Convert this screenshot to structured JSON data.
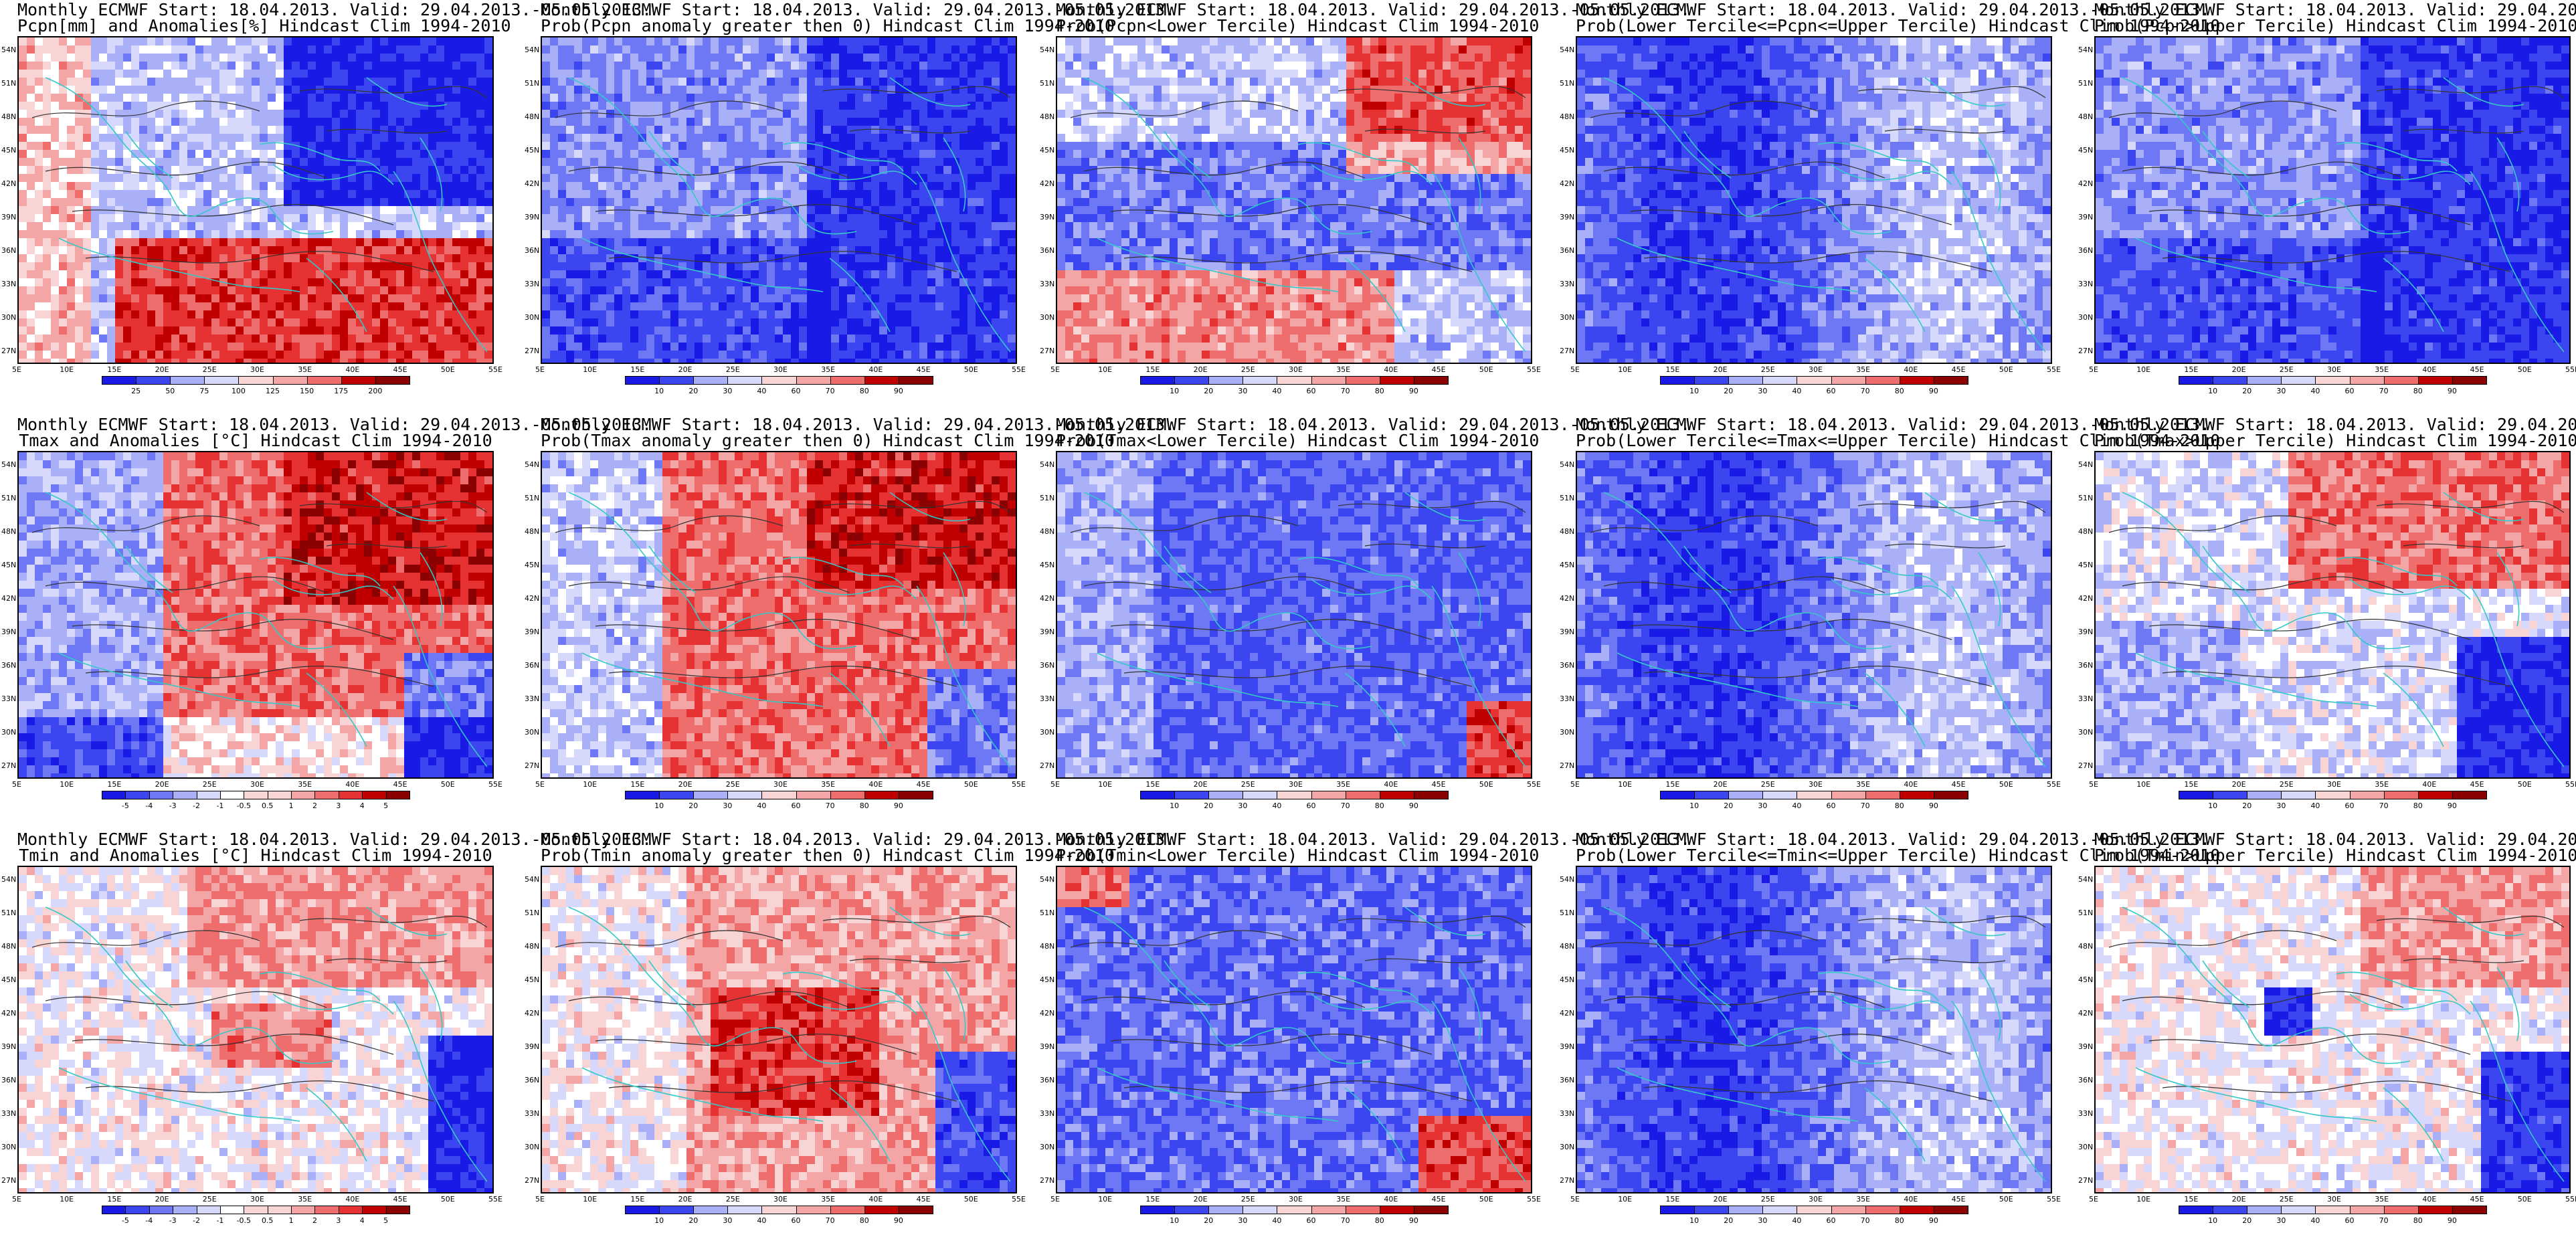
{
  "figure": {
    "common_title": "Monthly ECMWF Start: 18.04.2013. Valid: 29.04.2013.-05.05.2013.",
    "lat_labels": [
      "54N",
      "51N",
      "48N",
      "45N",
      "42N",
      "39N",
      "36N",
      "33N",
      "30N",
      "27N"
    ],
    "lon_labels": [
      "5E",
      "10E",
      "15E",
      "20E",
      "25E",
      "30E",
      "35E",
      "40E",
      "45E",
      "50E",
      "55E"
    ],
    "colors": {
      "deep_blue": "#1a1ae6",
      "blue": "#3c46f0",
      "mid_blue": "#6e78f5",
      "light_blue": "#aab0f8",
      "pale_blue": "#d6d9fb",
      "white": "#ffffff",
      "pale_red": "#f9d4d4",
      "light_red": "#f4a6a6",
      "mid_red": "#ee6e6e",
      "red": "#e63232",
      "deep_red": "#c00000",
      "dark_red": "#8b0000",
      "coast": "#35c8c8",
      "contour": "#333333"
    },
    "rows": [
      {
        "variable": "precipitation",
        "panels": [
          {
            "line2": "Pcpn[mm] and Anomalies[%] Hindcast Clim 1994-2010",
            "scheme": "anomaly",
            "colorbar": [
              "25",
              "50",
              "75",
              "100",
              "125",
              "150",
              "175",
              "200"
            ]
          },
          {
            "line2": "Prob(Pcpn anomaly greater then 0) Hindcast Clim 1994-2010",
            "scheme": "prob",
            "colorbar": [
              "10",
              "20",
              "30",
              "40",
              "60",
              "70",
              "80",
              "90"
            ]
          },
          {
            "line2": "Prob(Pcpn<Lower Tercile) Hindcast Clim 1994-2010",
            "scheme": "prob",
            "colorbar": [
              "10",
              "20",
              "30",
              "40",
              "60",
              "70",
              "80",
              "90"
            ]
          },
          {
            "line2": "Prob(Lower Tercile<=Pcpn<=Upper Tercile) Hindcast Clim 1994-2010",
            "scheme": "prob",
            "colorbar": [
              "10",
              "20",
              "30",
              "40",
              "60",
              "70",
              "80",
              "90"
            ]
          },
          {
            "line2": "Prob(Pcpn>Upper Tercile) Hindcast Clim 1994-2010",
            "scheme": "prob",
            "colorbar": [
              "10",
              "20",
              "30",
              "40",
              "60",
              "70",
              "80",
              "90"
            ]
          }
        ]
      },
      {
        "variable": "tmax",
        "panels": [
          {
            "line2": "Tmax and Anomalies [°C] Hindcast Clim 1994-2010",
            "scheme": "anomaly",
            "colorbar": [
              "-5",
              "-4",
              "-3",
              "-2",
              "-1",
              "-0.5",
              "0.5",
              "1",
              "2",
              "3",
              "4",
              "5"
            ]
          },
          {
            "line2": "Prob(Tmax anomaly greater then 0) Hindcast Clim 1994-2010",
            "scheme": "prob",
            "colorbar": [
              "10",
              "20",
              "30",
              "40",
              "60",
              "70",
              "80",
              "90"
            ]
          },
          {
            "line2": "Prob(Tmax<Lower Tercile) Hindcast Clim 1994-2010",
            "scheme": "prob",
            "colorbar": [
              "10",
              "20",
              "30",
              "40",
              "60",
              "70",
              "80",
              "90"
            ]
          },
          {
            "line2": "Prob(Lower Tercile<=Tmax<=Upper Tercile) Hindcast Clim 1994-2010",
            "scheme": "prob",
            "colorbar": [
              "10",
              "20",
              "30",
              "40",
              "60",
              "70",
              "80",
              "90"
            ]
          },
          {
            "line2": "Prob(Tmax>Upper Tercile) Hindcast Clim 1994-2010",
            "scheme": "prob",
            "colorbar": [
              "10",
              "20",
              "30",
              "40",
              "60",
              "70",
              "80",
              "90"
            ]
          }
        ]
      },
      {
        "variable": "tmin",
        "panels": [
          {
            "line2": "Tmin and Anomalies [°C] Hindcast Clim 1994-2010",
            "scheme": "anomaly",
            "colorbar": [
              "-5",
              "-4",
              "-3",
              "-2",
              "-1",
              "-0.5",
              "0.5",
              "1",
              "2",
              "3",
              "4",
              "5"
            ]
          },
          {
            "line2": "Prob(Tmin anomaly greater then 0) Hindcast Clim 1994-2010",
            "scheme": "prob",
            "colorbar": [
              "10",
              "20",
              "30",
              "40",
              "60",
              "70",
              "80",
              "90"
            ]
          },
          {
            "line2": "Prob(Tmin<Lower Tercile) Hindcast Clim 1994-2010",
            "scheme": "prob",
            "colorbar": [
              "10",
              "20",
              "30",
              "40",
              "60",
              "70",
              "80",
              "90"
            ]
          },
          {
            "line2": "Prob(Lower Tercile<=Tmin<=Upper Tercile) Hindcast Clim 1994-2010",
            "scheme": "prob",
            "colorbar": [
              "10",
              "20",
              "30",
              "40",
              "60",
              "70",
              "80",
              "90"
            ]
          },
          {
            "line2": "Prob(Tmin>Upper Tercile) Hindcast Clim 1994-2010",
            "scheme": "prob",
            "colorbar": [
              "10",
              "20",
              "30",
              "40",
              "60",
              "70",
              "80",
              "90"
            ]
          }
        ]
      }
    ]
  }
}
